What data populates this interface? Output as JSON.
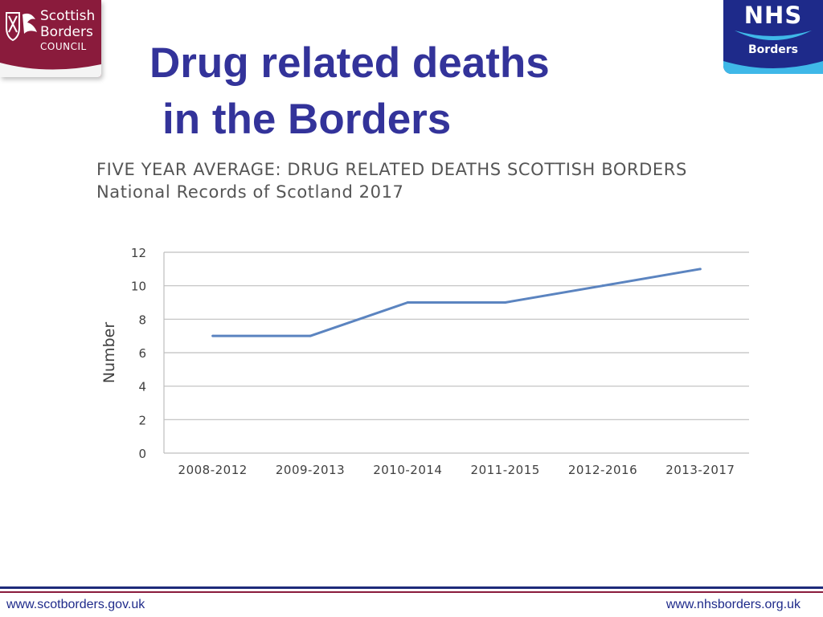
{
  "header": {
    "council_logo": {
      "line1": "Scottish",
      "line2": "Borders",
      "line3": "COUNCIL"
    },
    "nhs_logo": {
      "mark": "NHS",
      "region": "Borders"
    },
    "title_line1": "Drug related deaths",
    "title_line2": "in the Borders"
  },
  "colors": {
    "title": "#33339a",
    "council": "#8a1b3c",
    "nhs": "#1e2a8a",
    "series_line": "#5b84c0",
    "grid": "#bfbfbf"
  },
  "chart_data": {
    "type": "line",
    "title": "FIVE YEAR AVERAGE: DRUG RELATED DEATHS SCOTTISH BORDERS",
    "subtitle": "National Records of Scotland 2017",
    "xlabel": "",
    "ylabel": "Number",
    "ylim": [
      0,
      12
    ],
    "yticks": [
      "0",
      "2",
      "4",
      "6",
      "8",
      "10",
      "12"
    ],
    "grid": true,
    "legend": "none",
    "categories": [
      "2008-2012",
      "2009-2013",
      "2010-2014",
      "2011-2015",
      "2012-2016",
      "2013-2017"
    ],
    "series": [
      {
        "name": "Five year average",
        "values": [
          7,
          7,
          9,
          9,
          10,
          11
        ]
      }
    ]
  },
  "footer": {
    "left_url": "www.scotborders.gov.uk",
    "right_url": "www.nhsborders.org.uk"
  }
}
